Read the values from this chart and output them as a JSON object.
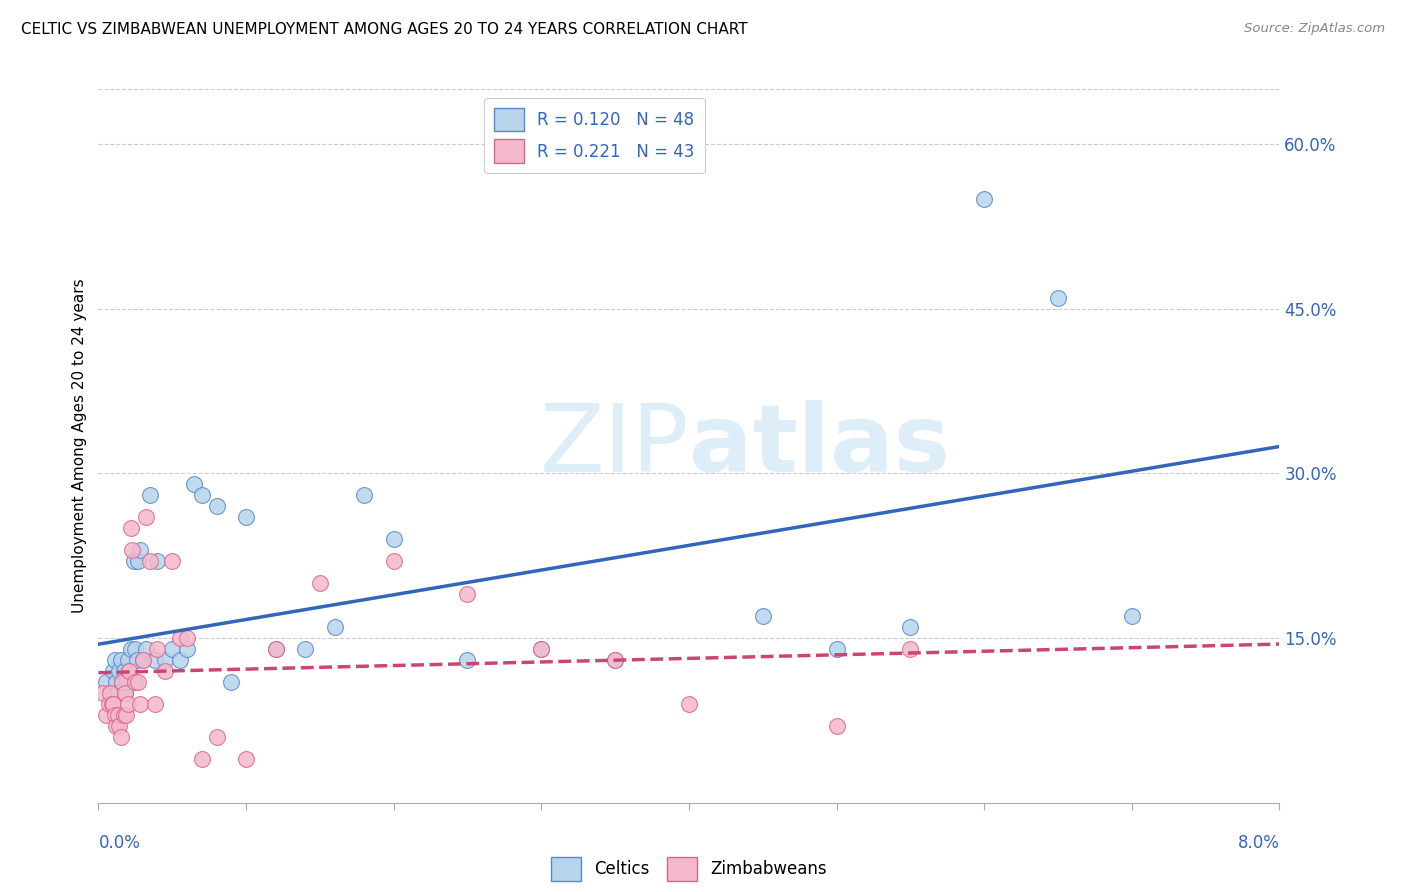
{
  "title": "CELTIC VS ZIMBABWEAN UNEMPLOYMENT AMONG AGES 20 TO 24 YEARS CORRELATION CHART",
  "source": "Source: ZipAtlas.com",
  "ylabel": "Unemployment Among Ages 20 to 24 years",
  "xlim": [
    0.0,
    8.0
  ],
  "ylim": [
    0.0,
    65.0
  ],
  "right_yticks": [
    15.0,
    30.0,
    45.0,
    60.0
  ],
  "celtics_R": 0.12,
  "celtics_N": 48,
  "zimbabweans_R": 0.221,
  "zimbabweans_N": 43,
  "celtics_color": "#b8d4ea",
  "zimbabweans_color": "#f4b8cc",
  "celtics_edge_color": "#5588cc",
  "zimbabweans_edge_color": "#dd6688",
  "celtics_line_color": "#3366bb",
  "zimbabweans_line_color": "#cc4477",
  "watermark_color": "#ddeef8",
  "celtics_x": [
    0.05,
    0.08,
    0.1,
    0.11,
    0.12,
    0.13,
    0.14,
    0.15,
    0.16,
    0.17,
    0.18,
    0.19,
    0.2,
    0.21,
    0.22,
    0.24,
    0.25,
    0.26,
    0.27,
    0.28,
    0.3,
    0.32,
    0.35,
    0.38,
    0.4,
    0.45,
    0.5,
    0.55,
    0.6,
    0.65,
    0.7,
    0.8,
    0.9,
    1.0,
    1.2,
    1.4,
    1.6,
    1.8,
    2.0,
    2.5,
    3.0,
    3.5,
    4.5,
    5.0,
    5.5,
    6.0,
    6.5,
    7.0
  ],
  "celtics_y": [
    11,
    10,
    12,
    13,
    11,
    10,
    12,
    13,
    11,
    12,
    10,
    11,
    13,
    12,
    14,
    22,
    14,
    13,
    22,
    23,
    13,
    14,
    28,
    13,
    22,
    13,
    14,
    13,
    14,
    29,
    28,
    27,
    11,
    26,
    14,
    14,
    16,
    28,
    24,
    13,
    14,
    13,
    17,
    14,
    16,
    55,
    46,
    17
  ],
  "zimbabweans_x": [
    0.03,
    0.05,
    0.07,
    0.08,
    0.09,
    0.1,
    0.11,
    0.12,
    0.13,
    0.14,
    0.15,
    0.16,
    0.17,
    0.18,
    0.19,
    0.2,
    0.21,
    0.22,
    0.23,
    0.25,
    0.27,
    0.28,
    0.3,
    0.32,
    0.35,
    0.38,
    0.4,
    0.45,
    0.5,
    0.55,
    0.6,
    0.7,
    0.8,
    1.0,
    1.2,
    1.5,
    2.0,
    2.5,
    3.0,
    3.5,
    4.0,
    5.0,
    5.5
  ],
  "zimbabweans_y": [
    10,
    8,
    9,
    10,
    9,
    9,
    8,
    7,
    8,
    7,
    6,
    11,
    8,
    10,
    8,
    9,
    12,
    25,
    23,
    11,
    11,
    9,
    13,
    26,
    22,
    9,
    14,
    12,
    22,
    15,
    15,
    4,
    6,
    4,
    14,
    20,
    22,
    19,
    14,
    13,
    9,
    7,
    14
  ]
}
